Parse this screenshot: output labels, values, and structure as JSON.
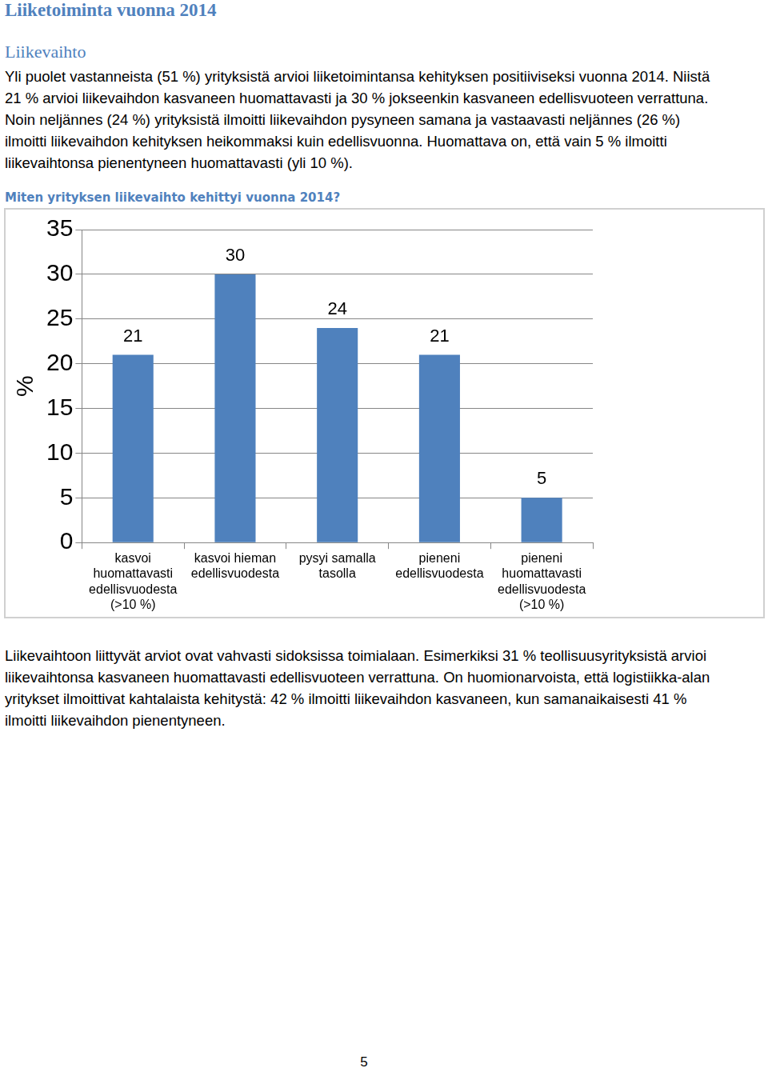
{
  "heading": "Liiketoiminta vuonna 2014",
  "subheading": "Liikevaihto",
  "paragraphs_before": [
    "Yli puolet vastanneista (51 %) yrityksistä arvioi liiketoimintansa kehityksen positiiviseksi vuonna 2014. Niistä 21 % arvioi liikevaihdon kasvaneen huomattavasti ja 30 % jokseenkin kasvaneen edellisvuoteen verrattuna. Noin neljännes (24 %) yrityksistä ilmoitti liikevaihdon pysyneen samana ja vastaavasti neljännes (26 %) ilmoitti liikevaihdon kehityksen heikommaksi kuin edellisvuonna. Huomattava on, että vain 5 % ilmoitti liikevaihtonsa pienentyneen huomattavasti (yli 10 %)."
  ],
  "chart_data": {
    "type": "bar",
    "title": "Miten yrityksen liikevaihto kehittyi vuonna 2014?",
    "y_label": "%",
    "categories": [
      "kasvoi huomattavasti edellisvuodesta (>10 %)",
      "kasvoi hieman edellisvuodesta",
      "pysyi samalla tasolla",
      "pieneni edellisvuodesta",
      "pieneni huomattavasti edellisvuodesta (>10 %)"
    ],
    "values": [
      21,
      30,
      24,
      21,
      5
    ],
    "color": "#4f81bd",
    "ylim": [
      0,
      35
    ],
    "yticks": [
      0,
      5,
      10,
      15,
      20,
      25,
      30,
      35
    ],
    "grid": true,
    "data_labels": true
  },
  "paragraphs_after": [
    "Liikevaihtoon liittyvät arviot ovat vahvasti sidoksissa toimialaan. Esimerkiksi 31 % teollisuusyrityksistä arvioi liikevaihtonsa kasvaneen huomattavasti edellisvuoteen verrattuna. On huomionarvoista, että logistiikka-alan yritykset ilmoittivat kahtalaista kehitystä: 42 % ilmoitti liikevaihdon kasvaneen, kun samanaikaisesti 41 % ilmoitti liikevaihdon pienentyneen."
  ],
  "page_number": 5
}
